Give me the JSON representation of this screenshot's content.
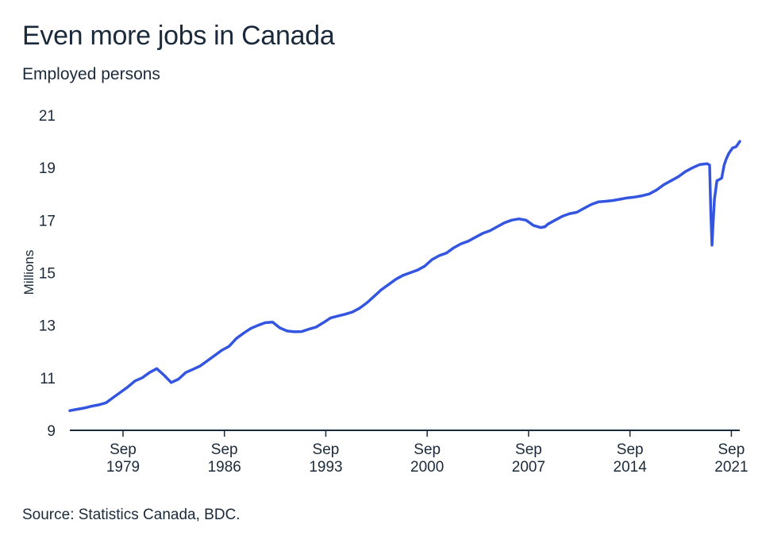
{
  "header": {
    "title": "Even more jobs in Canada",
    "subtitle": "Employed persons"
  },
  "footer": {
    "source": "Source: Statistics Canada, BDC."
  },
  "colors": {
    "line": "#3355e0",
    "axis": "#1b2a3a",
    "text": "#1b2a3a"
  },
  "chart_data": {
    "type": "line",
    "title": "Even more jobs in Canada",
    "subtitle": "Employed persons",
    "ylabel": "Millions",
    "xlabel": "",
    "ylim": [
      9,
      21
    ],
    "yticks": [
      9,
      11,
      13,
      15,
      17,
      19,
      21
    ],
    "xlim": [
      1976.0,
      2022.25
    ],
    "xticks": [
      {
        "x": 1979.67,
        "line1": "Sep",
        "line2": "1979"
      },
      {
        "x": 1986.67,
        "line1": "Sep",
        "line2": "1986"
      },
      {
        "x": 1993.67,
        "line1": "Sep",
        "line2": "1993"
      },
      {
        "x": 2000.67,
        "line1": "Sep",
        "line2": "2000"
      },
      {
        "x": 2007.67,
        "line1": "Sep",
        "line2": "2007"
      },
      {
        "x": 2014.67,
        "line1": "Sep",
        "line2": "2014"
      },
      {
        "x": 2021.67,
        "line1": "Sep",
        "line2": "2021"
      }
    ],
    "grid": false,
    "series": [
      {
        "name": "",
        "x": [
          1976.0,
          1976.5,
          1977.0,
          1977.5,
          1978.0,
          1978.5,
          1979.0,
          1979.5,
          1980.0,
          1980.5,
          1981.0,
          1981.5,
          1982.0,
          1982.5,
          1983.0,
          1983.5,
          1984.0,
          1984.5,
          1985.0,
          1985.5,
          1986.0,
          1986.5,
          1987.0,
          1987.5,
          1988.0,
          1988.5,
          1989.0,
          1989.5,
          1990.0,
          1990.5,
          1991.0,
          1991.5,
          1992.0,
          1992.5,
          1993.0,
          1993.5,
          1994.0,
          1994.5,
          1995.0,
          1995.5,
          1996.0,
          1996.5,
          1997.0,
          1997.5,
          1998.0,
          1998.5,
          1999.0,
          1999.5,
          2000.0,
          2000.5,
          2001.0,
          2001.5,
          2002.0,
          2002.5,
          2003.0,
          2003.5,
          2004.0,
          2004.5,
          2005.0,
          2005.5,
          2006.0,
          2006.5,
          2007.0,
          2007.5,
          2008.0,
          2008.5,
          2008.8,
          2009.0,
          2009.5,
          2010.0,
          2010.5,
          2011.0,
          2011.5,
          2012.0,
          2012.5,
          2013.0,
          2013.5,
          2014.0,
          2014.5,
          2015.0,
          2015.5,
          2016.0,
          2016.5,
          2017.0,
          2017.5,
          2018.0,
          2018.5,
          2019.0,
          2019.5,
          2020.0,
          2020.17,
          2020.25,
          2020.33,
          2020.42,
          2020.5,
          2020.67,
          2020.83,
          2021.0,
          2021.17,
          2021.33,
          2021.5,
          2021.75,
          2022.0,
          2022.25
        ],
        "values": [
          9.75,
          9.8,
          9.85,
          9.92,
          9.97,
          10.05,
          10.25,
          10.45,
          10.65,
          10.88,
          11.0,
          11.2,
          11.35,
          11.1,
          10.82,
          10.95,
          11.2,
          11.32,
          11.45,
          11.65,
          11.85,
          12.05,
          12.2,
          12.5,
          12.7,
          12.88,
          13.0,
          13.1,
          13.12,
          12.9,
          12.78,
          12.75,
          12.76,
          12.85,
          12.93,
          13.1,
          13.28,
          13.35,
          13.42,
          13.5,
          13.65,
          13.85,
          14.1,
          14.35,
          14.55,
          14.75,
          14.9,
          15.0,
          15.1,
          15.25,
          15.5,
          15.65,
          15.75,
          15.95,
          16.1,
          16.2,
          16.35,
          16.5,
          16.6,
          16.75,
          16.9,
          17.0,
          17.05,
          17.0,
          16.8,
          16.72,
          16.75,
          16.85,
          17.0,
          17.15,
          17.25,
          17.3,
          17.45,
          17.6,
          17.7,
          17.72,
          17.75,
          17.8,
          17.85,
          17.88,
          17.93,
          18.0,
          18.15,
          18.35,
          18.5,
          18.65,
          18.85,
          19.0,
          19.12,
          19.15,
          19.1,
          17.3,
          16.05,
          17.0,
          17.8,
          18.5,
          18.55,
          18.6,
          19.1,
          19.35,
          19.55,
          19.75,
          19.8,
          20.0
        ]
      }
    ]
  }
}
